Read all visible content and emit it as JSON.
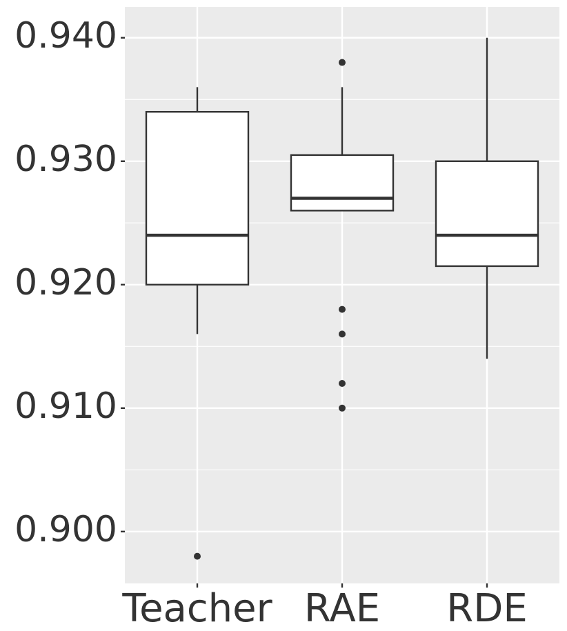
{
  "chart_data": {
    "type": "boxplot",
    "title": "",
    "xlabel": "",
    "ylabel": "",
    "ylim": [
      0.8958,
      0.9425
    ],
    "yticks": [
      "0.900",
      "0.910",
      "0.920",
      "0.930",
      "0.940"
    ],
    "grid": true,
    "legend": "none",
    "categories": [
      "Teacher",
      "RAE",
      "RDE"
    ],
    "series": [
      {
        "category": "Teacher",
        "whisker_low": 0.916,
        "q1": 0.92,
        "median": 0.924,
        "q3": 0.934,
        "whisker_high": 0.936,
        "outliers": [
          0.898
        ]
      },
      {
        "category": "RAE",
        "whisker_low": 0.926,
        "q1": 0.926,
        "median": 0.927,
        "q3": 0.9305,
        "whisker_high": 0.936,
        "outliers": [
          0.938,
          0.918,
          0.916,
          0.912,
          0.91
        ]
      },
      {
        "category": "RDE",
        "whisker_low": 0.914,
        "q1": 0.9215,
        "median": 0.924,
        "q3": 0.93,
        "whisker_high": 0.94,
        "outliers": []
      }
    ],
    "colors": {
      "panel": "#ebebeb",
      "grid": "#ffffff",
      "box_fill": "#ffffff",
      "box_line": "#333333",
      "tick_text": "#333333"
    }
  }
}
